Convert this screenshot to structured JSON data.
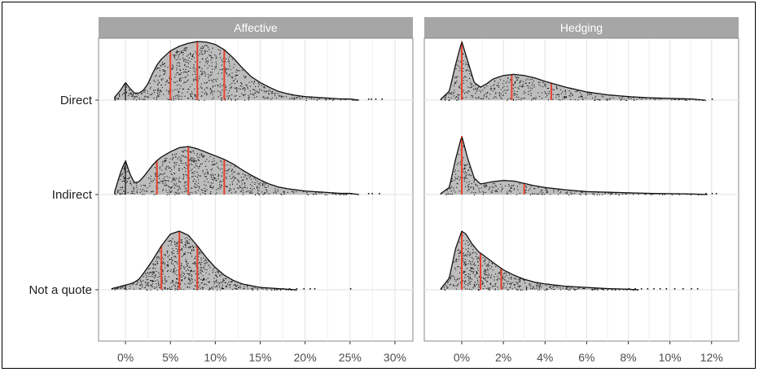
{
  "chart_data": [
    {
      "type": "ridgeline-density",
      "panel_title": "Affective",
      "categories": [
        "Direct",
        "Indirect",
        "Not a quote"
      ],
      "x_ticks": [
        0,
        5,
        10,
        15,
        20,
        25,
        30
      ],
      "x_tick_labels": [
        "0%",
        "5%",
        "10%",
        "15%",
        "20%",
        "25%",
        "30%"
      ],
      "xlim": [
        -3,
        32
      ],
      "grid": true,
      "series": [
        {
          "name": "Direct",
          "density_x": [
            -1.2,
            -0.5,
            0,
            0.5,
            1,
            1.5,
            2,
            2.5,
            3,
            3.5,
            4,
            5,
            6,
            7,
            8,
            9,
            10,
            11,
            12,
            13,
            14,
            15,
            16,
            17,
            18,
            19,
            20,
            21,
            22,
            23,
            24,
            25,
            26
          ],
          "density_y": [
            0.05,
            0.18,
            0.3,
            0.2,
            0.12,
            0.12,
            0.17,
            0.28,
            0.45,
            0.6,
            0.7,
            0.84,
            0.92,
            0.97,
            1.0,
            0.99,
            0.95,
            0.86,
            0.72,
            0.55,
            0.4,
            0.3,
            0.22,
            0.15,
            0.11,
            0.08,
            0.06,
            0.05,
            0.04,
            0.03,
            0.02,
            0.02,
            0.0
          ],
          "quantiles": [
            5,
            8,
            11
          ],
          "zero_line": 0,
          "outliers": [
            27.0,
            27.3,
            27.8,
            28.5
          ]
        },
        {
          "name": "Indirect",
          "density_x": [
            -1.2,
            -0.5,
            0,
            0.5,
            1,
            1.5,
            2,
            2.5,
            3,
            3.5,
            4,
            5,
            6,
            7,
            8,
            9,
            10,
            11,
            12,
            13,
            14,
            15,
            16,
            17,
            18,
            19,
            20,
            21,
            22,
            23,
            24,
            25,
            26
          ],
          "density_y": [
            0.05,
            0.4,
            0.58,
            0.35,
            0.2,
            0.22,
            0.3,
            0.4,
            0.5,
            0.58,
            0.64,
            0.73,
            0.8,
            0.82,
            0.78,
            0.72,
            0.66,
            0.6,
            0.52,
            0.42,
            0.33,
            0.25,
            0.18,
            0.13,
            0.1,
            0.08,
            0.06,
            0.05,
            0.04,
            0.03,
            0.02,
            0.02,
            0.0
          ],
          "quantiles": [
            3.5,
            7,
            11
          ],
          "zero_line": 0,
          "outliers": [
            27.0,
            27.4,
            28.2
          ]
        },
        {
          "name": "Not a quote",
          "density_x": [
            -1.5,
            -0.5,
            0,
            0.5,
            1,
            1.5,
            2,
            3,
            4,
            5,
            6,
            7,
            8,
            9,
            10,
            11,
            12,
            13,
            14,
            15,
            16,
            17,
            18,
            19
          ],
          "density_y": [
            0.02,
            0.06,
            0.08,
            0.1,
            0.13,
            0.18,
            0.28,
            0.5,
            0.75,
            0.95,
            1.0,
            0.93,
            0.75,
            0.55,
            0.38,
            0.25,
            0.16,
            0.1,
            0.07,
            0.04,
            0.03,
            0.02,
            0.01,
            0.0
          ],
          "quantiles": [
            4,
            6,
            8
          ],
          "zero_line": 0,
          "outliers": [
            17.5,
            18.2,
            19.0,
            19.8,
            20.5,
            21.0,
            25.0
          ]
        }
      ]
    },
    {
      "type": "ridgeline-density",
      "panel_title": "Hedging",
      "categories": [
        "Direct",
        "Indirect",
        "Not a quote"
      ],
      "x_ticks": [
        0,
        2,
        4,
        6,
        8,
        10,
        12
      ],
      "x_tick_labels": [
        "0%",
        "2%",
        "4%",
        "6%",
        "8%",
        "10%",
        "12%"
      ],
      "xlim": [
        -1.8,
        13.3
      ],
      "grid": true,
      "series": [
        {
          "name": "Direct",
          "density_x": [
            -1,
            -0.6,
            -0.3,
            0,
            0.3,
            0.6,
            0.9,
            1.2,
            1.5,
            2,
            2.5,
            3,
            3.5,
            4,
            4.5,
            5,
            5.5,
            6,
            7,
            8,
            9,
            10,
            11,
            11.7
          ],
          "density_y": [
            0.02,
            0.15,
            0.6,
            1.0,
            0.65,
            0.3,
            0.22,
            0.28,
            0.36,
            0.42,
            0.44,
            0.42,
            0.38,
            0.32,
            0.27,
            0.22,
            0.18,
            0.14,
            0.09,
            0.06,
            0.04,
            0.03,
            0.02,
            0.0
          ],
          "quantiles": [
            0,
            2.4,
            4.3
          ],
          "outliers": [
            12.0
          ]
        },
        {
          "name": "Indirect",
          "density_x": [
            -1,
            -0.6,
            -0.3,
            0,
            0.3,
            0.6,
            0.9,
            1.2,
            1.5,
            2,
            2.5,
            3,
            3.5,
            4,
            5,
            6,
            7,
            8,
            9,
            10,
            11,
            11.8
          ],
          "density_y": [
            0.02,
            0.12,
            0.6,
            1.0,
            0.6,
            0.28,
            0.18,
            0.2,
            0.22,
            0.24,
            0.23,
            0.19,
            0.15,
            0.12,
            0.08,
            0.05,
            0.04,
            0.03,
            0.02,
            0.015,
            0.01,
            0.0
          ],
          "quantiles": [
            0,
            0,
            3.0
          ],
          "outliers": [
            11.7,
            12.0,
            12.2
          ]
        },
        {
          "name": "Not a quote",
          "density_x": [
            -1,
            -0.6,
            -0.3,
            0,
            0.2,
            0.5,
            0.8,
            1,
            1.3,
            1.6,
            2,
            2.5,
            3,
            3.5,
            4,
            5,
            6,
            7,
            8,
            8.5
          ],
          "density_y": [
            0.02,
            0.2,
            0.7,
            1.0,
            0.95,
            0.78,
            0.65,
            0.6,
            0.52,
            0.44,
            0.34,
            0.25,
            0.18,
            0.13,
            0.1,
            0.06,
            0.04,
            0.02,
            0.01,
            0.0
          ],
          "quantiles": [
            0,
            0.9,
            1.9
          ],
          "outliers": [
            8.0,
            8.3,
            8.6,
            8.9,
            9.2,
            9.5,
            9.8,
            10.2,
            10.6,
            11.0,
            11.3
          ]
        }
      ]
    }
  ],
  "colors": {
    "panel_header": "#a6a6a6",
    "density_fill": "#bdbdbd",
    "quantile_line": "#e8432f",
    "grid": "#e6e6e6",
    "points": "#111111"
  }
}
